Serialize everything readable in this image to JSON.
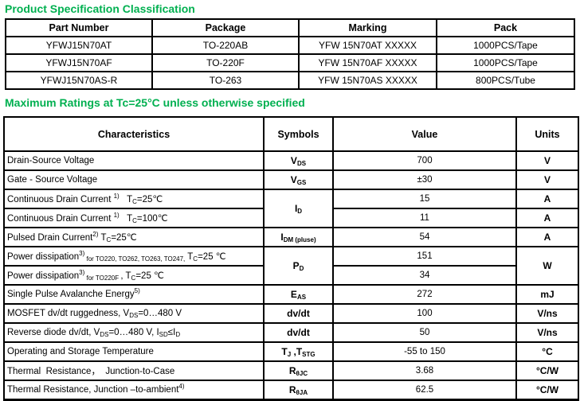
{
  "colors": {
    "heading_green": "#00B050",
    "border": "#000000",
    "text": "#000000"
  },
  "spec": {
    "title": "Product Specification Classification",
    "headers": [
      "Part Number",
      "Package",
      "Marking",
      "Pack"
    ],
    "rows": [
      [
        "YFWJ15N70AT",
        "TO-220AB",
        "YFW 15N70AT XXXXX",
        "1000PCS/Tape"
      ],
      [
        "YFWJ15N70AF",
        "TO-220F",
        "YFW 15N70AF XXXXX",
        "1000PCS/Tape"
      ],
      [
        "YFWJ15N70AS-R",
        "TO-263",
        "YFW 15N70AS XXXXX",
        "800PCS/Tube"
      ]
    ]
  },
  "ratings": {
    "title": "Maximum Ratings at Tc=25°C unless otherwise specified",
    "headers": [
      "Characteristics",
      "Symbols",
      "Value",
      "Units"
    ],
    "rows": [
      {
        "char": [
          {
            "t": "Drain-Source Voltage"
          }
        ],
        "symbol": [
          {
            "t": "V"
          },
          {
            "t": "DS",
            "s": "sub"
          }
        ],
        "value": "700",
        "units": "V"
      },
      {
        "char": [
          {
            "t": "Gate - Source Voltage"
          }
        ],
        "symbol": [
          {
            "t": "V"
          },
          {
            "t": "GS",
            "s": "sub"
          }
        ],
        "value": "±30",
        "units": "V"
      },
      {
        "char": [
          {
            "t": "Continuous Drain Current "
          },
          {
            "t": "1)",
            "s": "sup"
          },
          {
            "t": "   T"
          },
          {
            "t": "C",
            "s": "sub"
          },
          {
            "t": "=25℃"
          }
        ],
        "symbol": [
          {
            "t": "I"
          },
          {
            "t": "D",
            "s": "sub"
          }
        ],
        "value": "15",
        "units": "A"
      },
      {
        "char": [
          {
            "t": "Continuous Drain Current "
          },
          {
            "t": "1)",
            "s": "sup"
          },
          {
            "t": "   T"
          },
          {
            "t": "C",
            "s": "sub"
          },
          {
            "t": "=100℃"
          }
        ],
        "value": "11",
        "units": "A"
      },
      {
        "char": [
          {
            "t": "Pulsed Drain Current"
          },
          {
            "t": "2)",
            "s": "sup"
          },
          {
            "t": " T"
          },
          {
            "t": "C",
            "s": "sub"
          },
          {
            "t": "=25℃"
          }
        ],
        "symbol": [
          {
            "t": "I"
          },
          {
            "t": "DM (pluse)",
            "s": "sub"
          }
        ],
        "value": "54",
        "units": "A"
      },
      {
        "char": [
          {
            "t": "Power dissipation"
          },
          {
            "t": "3)",
            "s": "sup"
          },
          {
            "t": " for TO220, TO262, TO263, TO247,",
            "s": "sub"
          },
          {
            "t": " T"
          },
          {
            "t": "C",
            "s": "sub"
          },
          {
            "t": "=25 ℃"
          }
        ],
        "symbol": [
          {
            "t": "P"
          },
          {
            "t": "D",
            "s": "sub"
          }
        ],
        "value": "151",
        "units": "W"
      },
      {
        "char": [
          {
            "t": "Power dissipation"
          },
          {
            "t": "3)",
            "s": "sup"
          },
          {
            "t": " for TO220F ",
            "s": "sub"
          },
          {
            "t": ", T"
          },
          {
            "t": "C",
            "s": "sub"
          },
          {
            "t": "=25 ℃"
          }
        ],
        "value": "34"
      },
      {
        "char": [
          {
            "t": "Single Pulse Avalanche Energy"
          },
          {
            "t": "5)",
            "s": "sup"
          }
        ],
        "symbol": [
          {
            "t": "E"
          },
          {
            "t": "AS",
            "s": "sub"
          }
        ],
        "value": "272",
        "units": "mJ"
      },
      {
        "char": [
          {
            "t": "MOSFET dv/dt ruggedness, V"
          },
          {
            "t": "DS",
            "s": "sub"
          },
          {
            "t": "=0…480 V"
          }
        ],
        "symbol": [
          {
            "t": "dv/dt"
          }
        ],
        "value": "100",
        "units": "V/ns"
      },
      {
        "char": [
          {
            "t": "Reverse diode dv/dt, V"
          },
          {
            "t": "DS",
            "s": "sub"
          },
          {
            "t": "=0…480 V, I"
          },
          {
            "t": "SD",
            "s": "sub"
          },
          {
            "t": "≤I"
          },
          {
            "t": "D",
            "s": "sub"
          }
        ],
        "symbol": [
          {
            "t": "dv/dt"
          }
        ],
        "value": "50",
        "units": "V/ns"
      },
      {
        "char": [
          {
            "t": "Operating and Storage Temperature"
          }
        ],
        "symbol": [
          {
            "t": "T"
          },
          {
            "t": "J",
            "s": "sub"
          },
          {
            "t": " ,T"
          },
          {
            "t": "STG",
            "s": "sub"
          }
        ],
        "value": "-55 to 150",
        "units": "°C"
      },
      {
        "char": [
          {
            "t": "Thermal  Resistance，  Junction-to-Case"
          }
        ],
        "symbol": [
          {
            "t": "R"
          },
          {
            "t": "θJC",
            "s": "sub"
          }
        ],
        "value": "3.68",
        "units": "°C/W"
      },
      {
        "char": [
          {
            "t": "Thermal Resistance, Junction –to-ambient"
          },
          {
            "t": "4)",
            "s": "sup"
          }
        ],
        "symbol": [
          {
            "t": "R"
          },
          {
            "t": "θJA",
            "s": "sub"
          }
        ],
        "value": "62.5",
        "units": "°C/W"
      }
    ]
  }
}
